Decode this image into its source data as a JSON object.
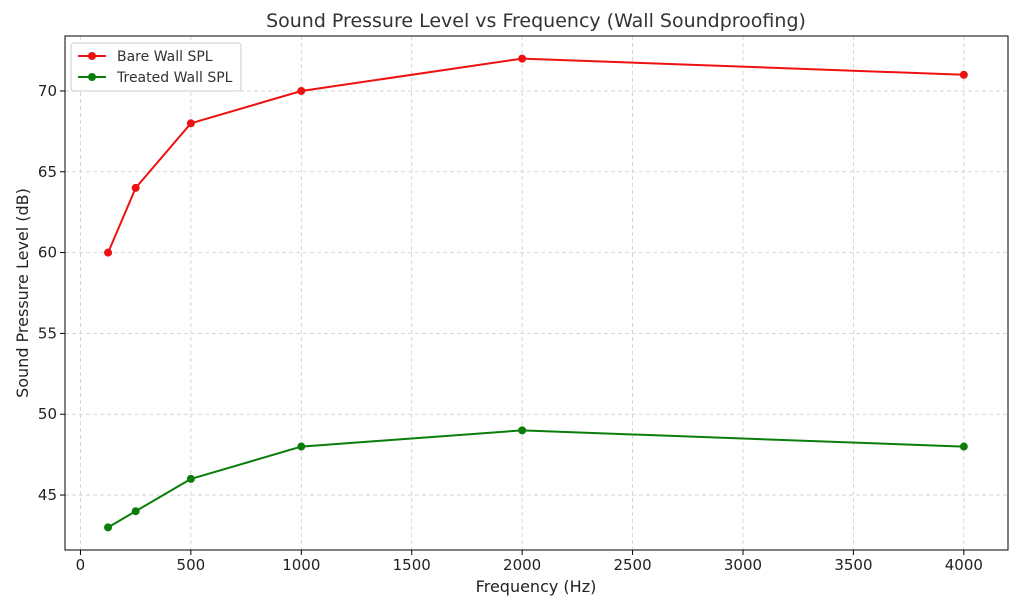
{
  "chart_data": {
    "type": "line",
    "title": "Sound Pressure Level vs Frequency (Wall Soundproofing)",
    "xlabel": "Frequency (Hz)",
    "ylabel": "Sound Pressure Level (dB)",
    "xlim": [
      -70,
      4200
    ],
    "ylim": [
      41.6,
      73.4
    ],
    "xticks": [
      0,
      500,
      1000,
      1500,
      2000,
      2500,
      3000,
      3500,
      4000
    ],
    "yticks": [
      45,
      50,
      55,
      60,
      65,
      70
    ],
    "grid": true,
    "legend_position": "top-left",
    "series": [
      {
        "name": "Bare Wall SPL",
        "color": "#ee1111",
        "x": [
          125,
          250,
          500,
          1000,
          2000,
          4000
        ],
        "y": [
          60,
          64,
          68,
          70,
          72,
          71
        ]
      },
      {
        "name": "Treated Wall SPL",
        "color": "#0a7d0a",
        "x": [
          125,
          250,
          500,
          1000,
          2000,
          4000
        ],
        "y": [
          43,
          44,
          46,
          48,
          49,
          48
        ]
      }
    ]
  }
}
